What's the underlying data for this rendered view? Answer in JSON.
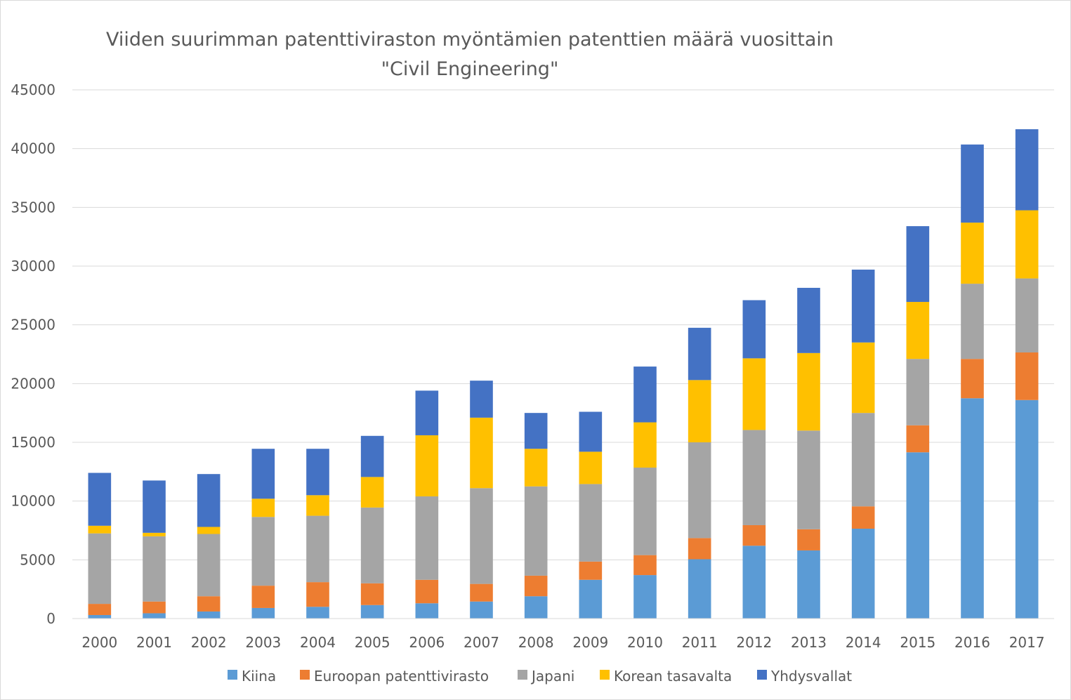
{
  "chart_data": {
    "type": "bar",
    "stacked": true,
    "title": "Viiden suurimman patenttiviraston myöntämien patenttien määrä vuosittain",
    "subtitle": "\"Civil Engineering\"",
    "xlabel": "",
    "ylabel": "",
    "ylim": [
      0,
      45000
    ],
    "yticks": [
      "0",
      "5000",
      "10000",
      "15000",
      "20000",
      "25000",
      "30000",
      "35000",
      "40000",
      "45000"
    ],
    "grid": true,
    "legend_position": "bottom",
    "categories": [
      "2000",
      "2001",
      "2002",
      "2003",
      "2004",
      "2005",
      "2006",
      "2007",
      "2008",
      "2009",
      "2010",
      "2011",
      "2012",
      "2013",
      "2014",
      "2015",
      "2016",
      "2017"
    ],
    "series": [
      {
        "name": "Kiina",
        "color": "#5b9bd5",
        "values": [
          300,
          450,
          600,
          900,
          1000,
          1150,
          1300,
          1450,
          1900,
          3300,
          3700,
          5050,
          6200,
          5800,
          7650,
          14150,
          18750,
          18600
        ]
      },
      {
        "name": "Euroopan patenttivirasto",
        "color": "#ed7d31",
        "values": [
          950,
          1000,
          1300,
          1900,
          2100,
          1850,
          2000,
          1500,
          1750,
          1550,
          1700,
          1800,
          1750,
          1800,
          1900,
          2300,
          3350,
          4050
        ]
      },
      {
        "name": "Japani",
        "color": "#a5a5a5",
        "values": [
          6000,
          5550,
          5300,
          5850,
          5650,
          6450,
          7100,
          8150,
          7600,
          6600,
          7450,
          8150,
          8100,
          8400,
          7950,
          5650,
          6400,
          6300
        ]
      },
      {
        "name": "Korean tasavalta",
        "color": "#ffc000",
        "values": [
          650,
          300,
          600,
          1550,
          1750,
          2600,
          5200,
          6000,
          3200,
          2750,
          3850,
          5300,
          6100,
          6600,
          6000,
          4850,
          5200,
          5800
        ]
      },
      {
        "name": "Yhdysvallat",
        "color": "#4472c4",
        "values": [
          4500,
          4450,
          4500,
          4250,
          3950,
          3500,
          3800,
          3150,
          3050,
          3400,
          4750,
          4450,
          4950,
          5550,
          6200,
          6450,
          6650,
          6900
        ]
      }
    ]
  }
}
